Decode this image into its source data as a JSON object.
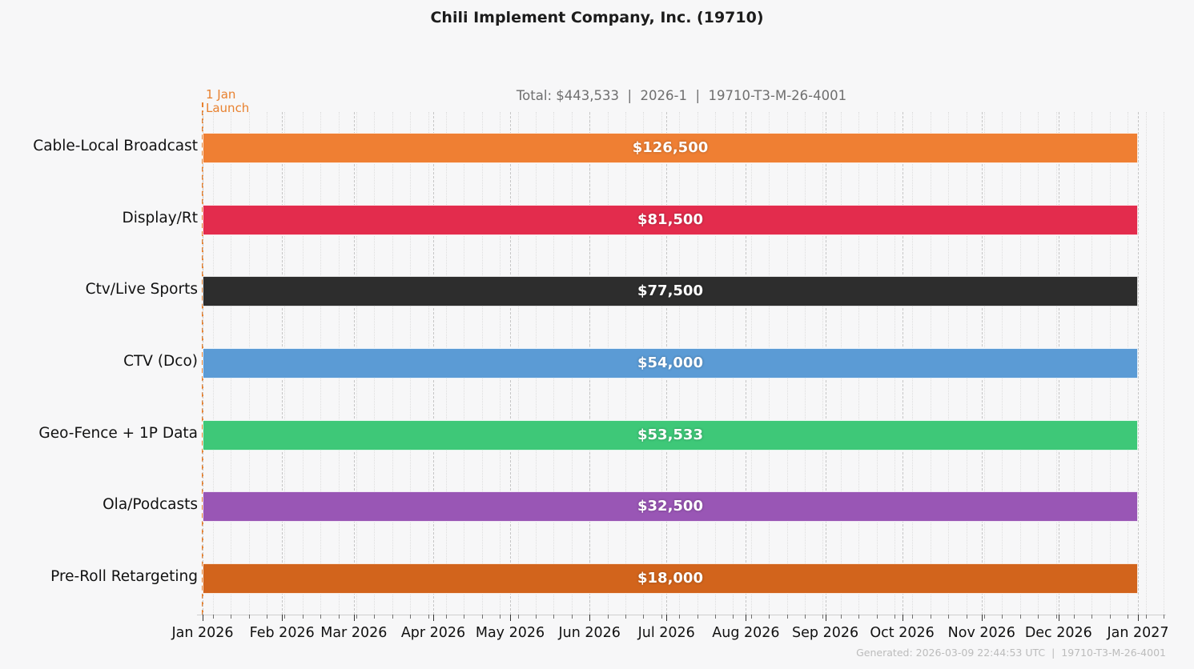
{
  "title": "Chili Implement Company, Inc. (19710)",
  "subtitle": "Total: $443,533  |  2026-1  |  19710-T3-M-26-4001",
  "launch_annotation": {
    "line1": "1 Jan",
    "line2": "Launch",
    "color": "#e8812f"
  },
  "footer": "Generated: 2026-03-09 22:44:53 UTC  |  19710-T3-M-26-4001",
  "colors": {
    "background": "#f7f7f8",
    "launch_line": "#e8812f",
    "major_grid": "#c6c6c6",
    "minor_grid": "#dedede",
    "axis_line": "#cfcfcf",
    "title_text": "#1c1c1c",
    "subtitle_text": "#6f6f6f",
    "footer_text": "#bcbcbc"
  },
  "chart_data": {
    "type": "bar",
    "subtype": "horizontal-gantt",
    "title": "Chili Implement Company, Inc. (19710)",
    "total_label": "Total: $443,533",
    "total_value": 443533,
    "flight_code": "2026-1",
    "plan_code": "19710-T3-M-26-4001",
    "categories": [
      "Cable-Local Broadcast",
      "Display/Rt",
      "Ctv/Live Sports",
      "CTV (Dco)",
      "Geo-Fence + 1P Data",
      "Ola/Podcasts",
      "Pre-Roll Retargeting"
    ],
    "values": [
      126500,
      81500,
      77500,
      54000,
      53533,
      32500,
      18000
    ],
    "value_labels": [
      "$126,500",
      "$81,500",
      "$77,500",
      "$54,000",
      "$53,533",
      "$32,500",
      "$18,000"
    ],
    "bar_colors": [
      "#ef7f33",
      "#e32c4d",
      "#2d2d2d",
      "#5b9bd5",
      "#3ec878",
      "#9956b5",
      "#d2641c"
    ],
    "bar_start_day": 0,
    "bar_end_day": 365,
    "launch_day": 0,
    "x_range_days": [
      0,
      376
    ],
    "x_ticks": [
      {
        "label": "Jan 2026",
        "day": 0
      },
      {
        "label": "Feb 2026",
        "day": 31
      },
      {
        "label": "Mar 2026",
        "day": 59
      },
      {
        "label": "Apr 2026",
        "day": 90
      },
      {
        "label": "May 2026",
        "day": 120
      },
      {
        "label": "Jun 2026",
        "day": 151
      },
      {
        "label": "Jul 2026",
        "day": 181
      },
      {
        "label": "Aug 2026",
        "day": 212
      },
      {
        "label": "Sep 2026",
        "day": 243
      },
      {
        "label": "Oct 2026",
        "day": 273
      },
      {
        "label": "Nov 2026",
        "day": 304
      },
      {
        "label": "Dec 2026",
        "day": 334
      },
      {
        "label": "Jan 2027",
        "day": 365
      }
    ],
    "grid": {
      "major": "monthly-dashed",
      "minor": "weekly-dotted",
      "minor_start_day": 4,
      "minor_step_days": 7
    },
    "legend": "none"
  }
}
